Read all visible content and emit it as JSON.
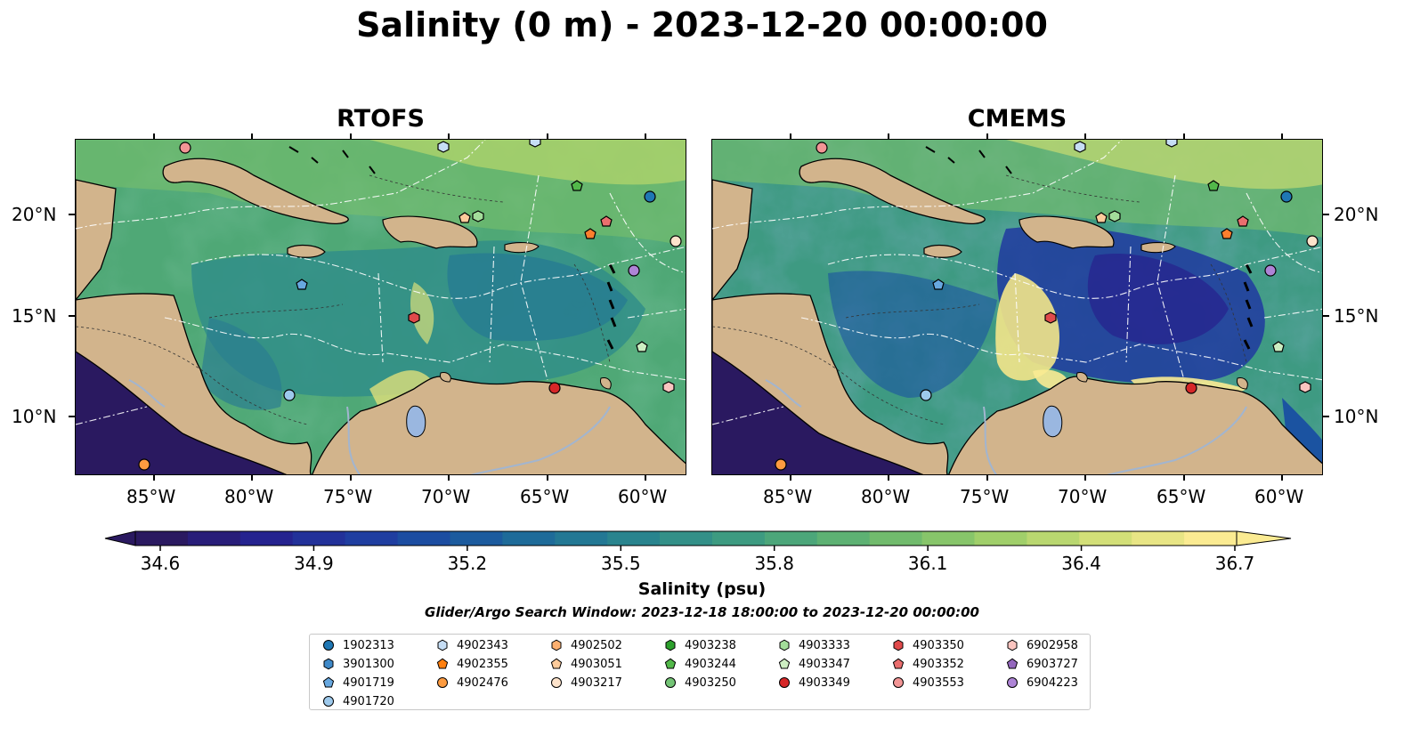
{
  "title": "Salinity (0 m) - 2023-12-20 00:00:00",
  "panels": [
    {
      "label": "RTOFS"
    },
    {
      "label": "CMEMS"
    }
  ],
  "lat_ticks": [
    "20°N",
    "15°N",
    "10°N"
  ],
  "lon_ticks": [
    "85°W",
    "80°W",
    "75°W",
    "70°W",
    "65°W",
    "60°W"
  ],
  "colorbar": {
    "labels": [
      "34.6",
      "34.9",
      "35.2",
      "35.5",
      "35.8",
      "36.1",
      "36.4",
      "36.7"
    ],
    "min": 34.6,
    "max": 36.7,
    "title": "Salinity (psu)",
    "colormap": [
      "#2a1960",
      "#26218d",
      "#2039a0",
      "#1b53a1",
      "#1f6f98",
      "#2a858d",
      "#3c9a82",
      "#57ae75",
      "#7cc16a",
      "#a9d26a",
      "#d8e07a",
      "#fbeb92"
    ]
  },
  "search_window": "Glider/Argo Search Window: 2023-12-18 18:00:00 to 2023-12-20 00:00:00",
  "legend": [
    {
      "id": "1902313",
      "marker": "circle",
      "color": "#1f77b4"
    },
    {
      "id": "3901300",
      "marker": "hexagon",
      "color": "#3f89c8"
    },
    {
      "id": "4901719",
      "marker": "pentagon",
      "color": "#68a8e0"
    },
    {
      "id": "4901720",
      "marker": "circle",
      "color": "#9dc9ec"
    },
    {
      "id": "4902343",
      "marker": "hexagon",
      "color": "#c6def5"
    },
    {
      "id": "4902355",
      "marker": "pentagon",
      "color": "#ff7f0e"
    },
    {
      "id": "4902476",
      "marker": "circle",
      "color": "#fd9b40"
    },
    {
      "id": "4902502",
      "marker": "hexagon",
      "color": "#fdb070"
    },
    {
      "id": "4903051",
      "marker": "pentagon",
      "color": "#fdcb9b"
    },
    {
      "id": "4903217",
      "marker": "circle",
      "color": "#fde3cb"
    },
    {
      "id": "4903238",
      "marker": "hexagon",
      "color": "#2ca02c"
    },
    {
      "id": "4903244",
      "marker": "pentagon",
      "color": "#52b84a"
    },
    {
      "id": "4903250",
      "marker": "circle",
      "color": "#74c476"
    },
    {
      "id": "4903333",
      "marker": "hexagon",
      "color": "#a3dd9a"
    },
    {
      "id": "4903347",
      "marker": "pentagon",
      "color": "#cdeec2"
    },
    {
      "id": "4903349",
      "marker": "circle",
      "color": "#d62728"
    },
    {
      "id": "4903350",
      "marker": "hexagon",
      "color": "#e04a4b"
    },
    {
      "id": "4903352",
      "marker": "pentagon",
      "color": "#ea6e6e"
    },
    {
      "id": "4903553",
      "marker": "circle",
      "color": "#f29595"
    },
    {
      "id": "6902958",
      "marker": "hexagon",
      "color": "#fbc5c0"
    },
    {
      "id": "6903727",
      "marker": "pentagon",
      "color": "#9467bd"
    },
    {
      "id": "6904223",
      "marker": "circle",
      "color": "#ae84d6"
    }
  ]
}
